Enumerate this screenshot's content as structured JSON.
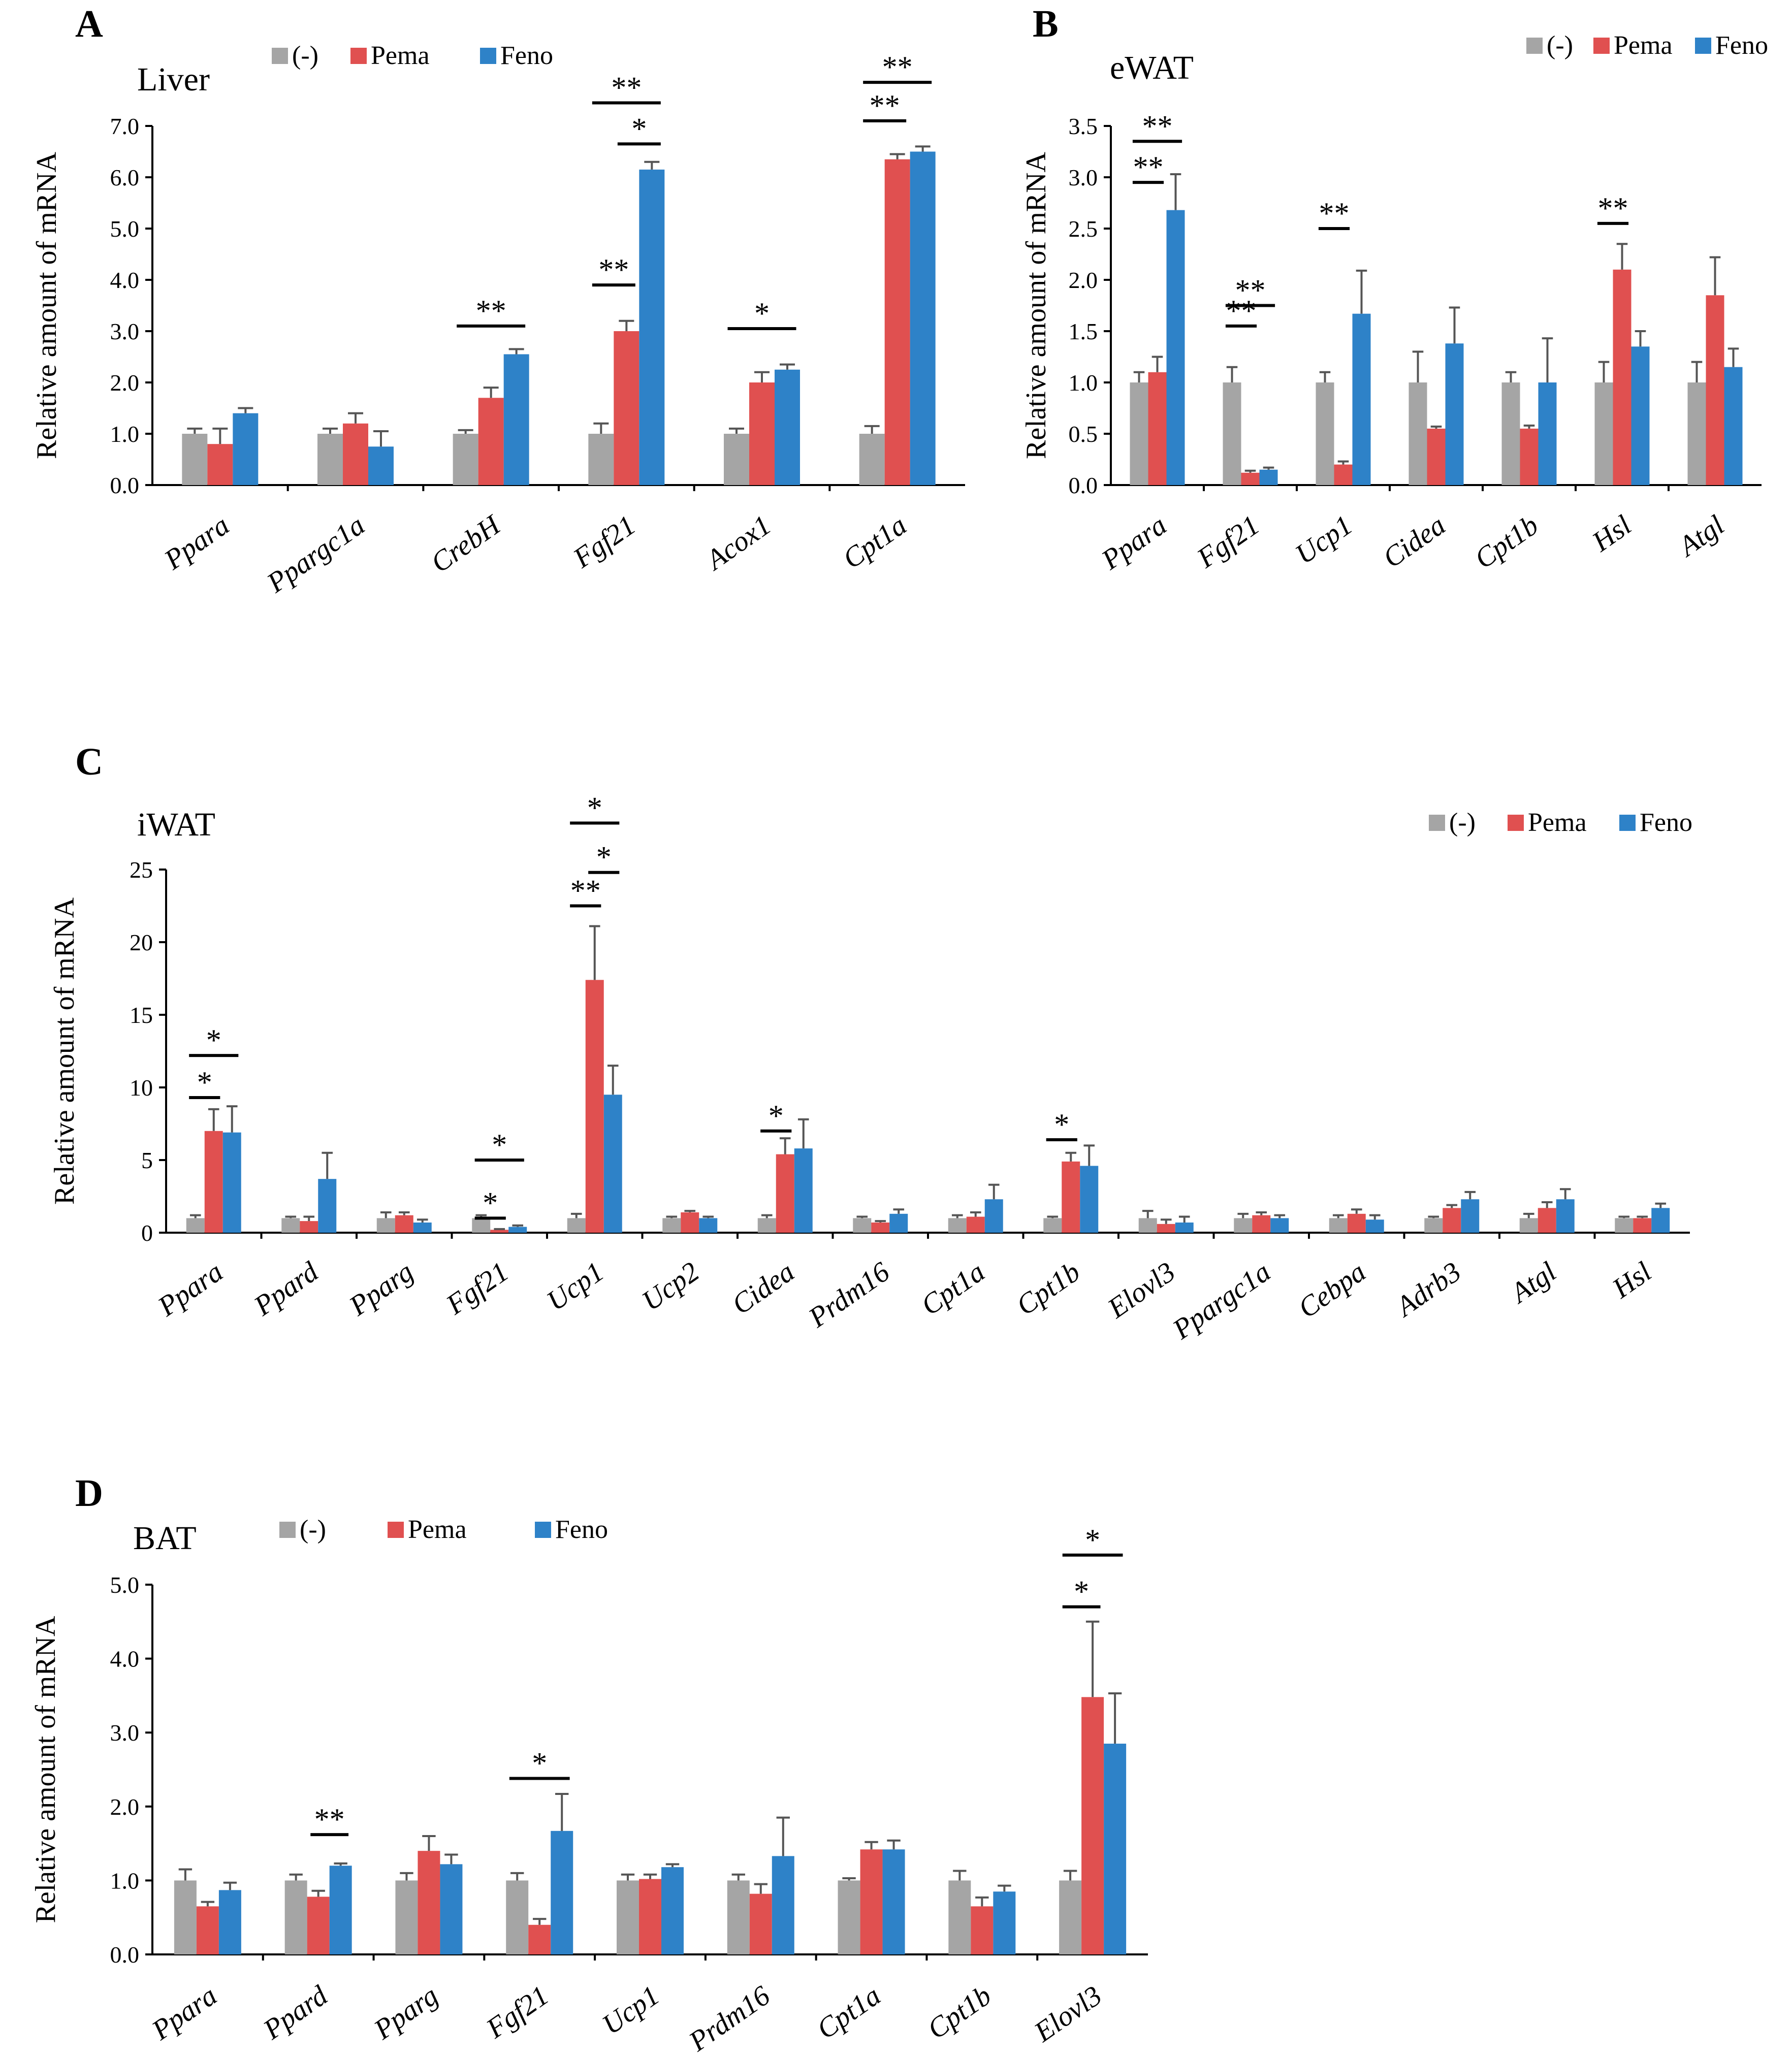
{
  "colors": {
    "ctrl": "#A5A5A5",
    "pema": "#E05050",
    "feno": "#2E82C8",
    "axis": "#000000",
    "errbar": "#555555"
  },
  "chart_data": [
    {
      "type": "bar",
      "panel": "A",
      "title": "Liver",
      "ylabel": "Relative amount of mRNA",
      "ylim": [
        0,
        7
      ],
      "yticks": [
        "0.0",
        "1.0",
        "2.0",
        "3.0",
        "4.0",
        "5.0",
        "6.0",
        "7.0"
      ],
      "legend": [
        "(-)",
        "Pema",
        "Feno"
      ],
      "legend_position": "top",
      "categories": [
        "Ppara",
        "Ppargc1a",
        "CrebH",
        "Fgf21",
        "Acox1",
        "Cpt1a"
      ],
      "series": [
        {
          "name": "(-)",
          "values": [
            1.0,
            1.0,
            1.0,
            1.0,
            1.0,
            1.0
          ],
          "errors": [
            0.1,
            0.1,
            0.07,
            0.2,
            0.1,
            0.15
          ]
        },
        {
          "name": "Pema",
          "values": [
            0.8,
            1.2,
            1.7,
            3.0,
            2.0,
            6.35
          ],
          "errors": [
            0.3,
            0.2,
            0.2,
            0.2,
            0.2,
            0.1
          ]
        },
        {
          "name": "Feno",
          "values": [
            1.4,
            0.75,
            2.55,
            6.15,
            2.25,
            6.5
          ],
          "errors": [
            0.1,
            0.3,
            0.1,
            0.15,
            0.1,
            0.1
          ]
        }
      ],
      "significance": [
        {
          "category": "CrebH",
          "from": 0,
          "to": 2,
          "label": "**",
          "y": 3.1
        },
        {
          "category": "Fgf21",
          "from": 0,
          "to": 1,
          "label": "**",
          "y": 3.9
        },
        {
          "category": "Fgf21",
          "from": 1,
          "to": 2,
          "label": "*",
          "y": 6.65
        },
        {
          "category": "Fgf21",
          "from": 0,
          "to": 2,
          "label": "**",
          "y": 7.45
        },
        {
          "category": "Acox1",
          "from": 0,
          "to": 2,
          "label": "*",
          "y": 3.05
        },
        {
          "category": "Cpt1a",
          "from": 0,
          "to": 1,
          "label": "**",
          "y": 7.1
        },
        {
          "category": "Cpt1a",
          "from": 0,
          "to": 2,
          "label": "**",
          "y": 7.85
        }
      ]
    },
    {
      "type": "bar",
      "panel": "B",
      "title": "eWAT",
      "ylabel": "Relative amount of mRNA",
      "ylim": [
        0,
        3.5
      ],
      "yticks": [
        "0.0",
        "0.5",
        "1.0",
        "1.5",
        "2.0",
        "2.5",
        "3.0",
        "3.5"
      ],
      "legend": [
        "(-)",
        "Pema",
        "Feno"
      ],
      "legend_position": "top-right",
      "categories": [
        "Ppara",
        "Fgf21",
        "Ucp1",
        "Cidea",
        "Cpt1b",
        "Hsl",
        "Atgl"
      ],
      "series": [
        {
          "name": "(-)",
          "values": [
            1.0,
            1.0,
            1.0,
            1.0,
            1.0,
            1.0,
            1.0
          ],
          "errors": [
            0.1,
            0.15,
            0.1,
            0.3,
            0.1,
            0.2,
            0.2
          ]
        },
        {
          "name": "Pema",
          "values": [
            1.1,
            0.12,
            0.2,
            0.55,
            0.55,
            2.1,
            1.85
          ],
          "errors": [
            0.15,
            0.02,
            0.03,
            0.02,
            0.03,
            0.25,
            0.37
          ]
        },
        {
          "name": "Feno",
          "values": [
            2.68,
            0.15,
            1.67,
            1.38,
            1.0,
            1.35,
            1.15
          ],
          "errors": [
            0.35,
            0.02,
            0.42,
            0.35,
            0.43,
            0.15,
            0.18
          ]
        }
      ],
      "significance": [
        {
          "category": "Ppara",
          "from": 0,
          "to": 1,
          "label": "**",
          "y": 2.95
        },
        {
          "category": "Ppara",
          "from": 0,
          "to": 2,
          "label": "**",
          "y": 3.35
        },
        {
          "category": "Fgf21",
          "from": 0,
          "to": 1,
          "label": "**",
          "y": 1.55
        },
        {
          "category": "Fgf21",
          "from": 0,
          "to": 2,
          "label": "**",
          "y": 1.75
        },
        {
          "category": "Ucp1",
          "from": 0,
          "to": 1,
          "label": "**",
          "y": 2.5
        },
        {
          "category": "Hsl",
          "from": 0,
          "to": 1,
          "label": "**",
          "y": 2.55
        }
      ]
    },
    {
      "type": "bar",
      "panel": "C",
      "title": "iWAT",
      "ylabel": "Relative amount of mRNA",
      "ylim": [
        0,
        25
      ],
      "yticks": [
        "0",
        "5",
        "10",
        "15",
        "20",
        "25"
      ],
      "legend": [
        "(-)",
        "Pema",
        "Feno"
      ],
      "legend_position": "top-right",
      "categories": [
        "Ppara",
        "Ppard",
        "Pparg",
        "Fgf21",
        "Ucp1",
        "Ucp2",
        "Cidea",
        "Prdm16",
        "Cpt1a",
        "Cpt1b",
        "Elovl3",
        "Ppargc1a",
        "Cebpa",
        "Adrb3",
        "Atgl",
        "Hsl"
      ],
      "series": [
        {
          "name": "(-)",
          "values": [
            1.0,
            1.0,
            1.0,
            1.0,
            1.0,
            1.0,
            1.0,
            1.0,
            1.0,
            1.0,
            1.0,
            1.0,
            1.0,
            1.0,
            1.0,
            1.0
          ],
          "errors": [
            0.2,
            0.1,
            0.4,
            0.2,
            0.3,
            0.1,
            0.2,
            0.1,
            0.2,
            0.1,
            0.5,
            0.3,
            0.2,
            0.1,
            0.3,
            0.1
          ]
        },
        {
          "name": "Pema",
          "values": [
            7.0,
            0.8,
            1.2,
            0.2,
            17.4,
            1.4,
            5.4,
            0.7,
            1.1,
            4.9,
            0.6,
            1.2,
            1.3,
            1.7,
            1.7,
            1.0
          ],
          "errors": [
            1.5,
            0.3,
            0.2,
            0.05,
            3.7,
            0.1,
            1.1,
            0.1,
            0.3,
            0.6,
            0.3,
            0.2,
            0.3,
            0.2,
            0.4,
            0.1
          ]
        },
        {
          "name": "Feno",
          "values": [
            6.9,
            3.7,
            0.7,
            0.4,
            9.5,
            1.0,
            5.8,
            1.3,
            2.3,
            4.6,
            0.7,
            1.0,
            0.9,
            2.3,
            2.3,
            1.7
          ],
          "errors": [
            1.8,
            1.8,
            0.2,
            0.1,
            2.0,
            0.1,
            2.0,
            0.3,
            1.0,
            1.4,
            0.4,
            0.2,
            0.3,
            0.5,
            0.7,
            0.3
          ]
        }
      ],
      "significance": [
        {
          "category": "Ppara",
          "from": 0,
          "to": 1,
          "label": "*",
          "y": 9.3
        },
        {
          "category": "Ppara",
          "from": 0,
          "to": 2,
          "label": "*",
          "y": 12.2
        },
        {
          "category": "Fgf21",
          "from": 0,
          "to": 1,
          "label": "*",
          "y": 1.0
        },
        {
          "category": "Fgf21",
          "from": 0,
          "to": 2,
          "label": "*",
          "y": 5.0
        },
        {
          "category": "Ucp1",
          "from": 0,
          "to": 1,
          "label": "**",
          "y": 22.5
        },
        {
          "category": "Ucp1",
          "from": 1,
          "to": 2,
          "label": "*",
          "y": 24.8
        },
        {
          "category": "Ucp1",
          "from": 0,
          "to": 2,
          "label": "*",
          "y": 28.2
        },
        {
          "category": "Cidea",
          "from": 0,
          "to": 1,
          "label": "*",
          "y": 7.0
        },
        {
          "category": "Cpt1b",
          "from": 0,
          "to": 1,
          "label": "*",
          "y": 6.4
        }
      ]
    },
    {
      "type": "bar",
      "panel": "D",
      "title": "BAT",
      "ylabel": "Relative amount of mRNA",
      "ylim": [
        0,
        5
      ],
      "yticks": [
        "0.0",
        "1.0",
        "2.0",
        "3.0",
        "4.0",
        "5.0"
      ],
      "legend": [
        "(-)",
        "Pema",
        "Feno"
      ],
      "legend_position": "top",
      "categories": [
        "Ppara",
        "Ppard",
        "Pparg",
        "Fgf21",
        "Ucp1",
        "Prdm16",
        "Cpt1a",
        "Cpt1b",
        "Elovl3"
      ],
      "series": [
        {
          "name": "(-)",
          "values": [
            1.0,
            1.0,
            1.0,
            1.0,
            1.0,
            1.0,
            1.0,
            1.0,
            1.0
          ],
          "errors": [
            0.15,
            0.08,
            0.1,
            0.1,
            0.08,
            0.08,
            0.03,
            0.13,
            0.13
          ]
        },
        {
          "name": "Pema",
          "values": [
            0.65,
            0.78,
            1.4,
            0.4,
            1.02,
            0.82,
            1.42,
            0.65,
            3.48
          ],
          "errors": [
            0.06,
            0.08,
            0.2,
            0.08,
            0.06,
            0.13,
            0.1,
            0.12,
            1.02
          ]
        },
        {
          "name": "Feno",
          "values": [
            0.87,
            1.2,
            1.22,
            1.67,
            1.18,
            1.33,
            1.42,
            0.85,
            2.85
          ],
          "errors": [
            0.1,
            0.03,
            0.13,
            0.5,
            0.04,
            0.52,
            0.12,
            0.08,
            0.68
          ]
        }
      ],
      "significance": [
        {
          "category": "Ppard",
          "from": 1,
          "to": 2,
          "label": "**",
          "y": 1.62
        },
        {
          "category": "Fgf21",
          "from": 0,
          "to": 2,
          "label": "*",
          "y": 2.38
        },
        {
          "category": "Elovl3",
          "from": 0,
          "to": 1,
          "label": "*",
          "y": 4.7
        },
        {
          "category": "Elovl3",
          "from": 0,
          "to": 2,
          "label": "*",
          "y": 5.4
        }
      ]
    }
  ]
}
